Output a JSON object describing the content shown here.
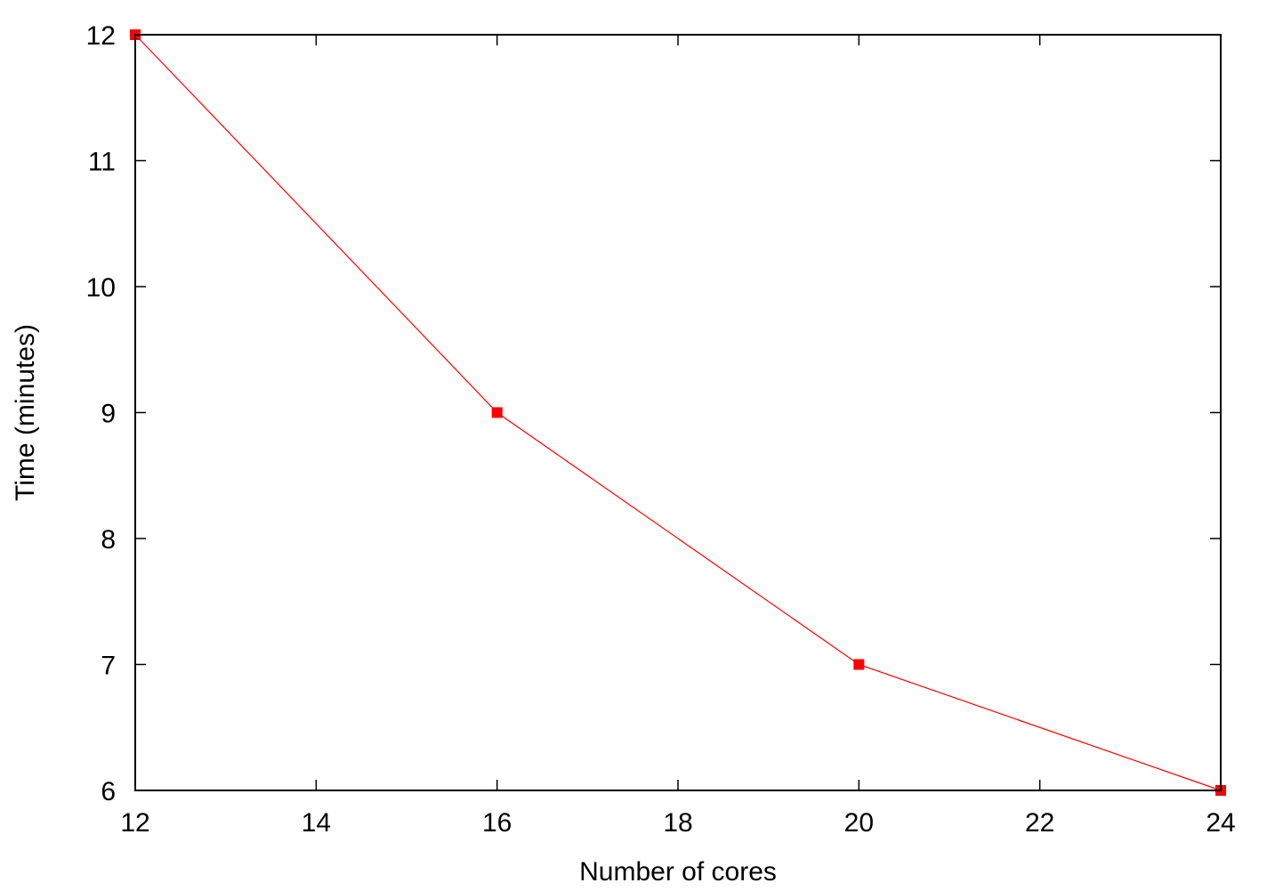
{
  "chart_data": {
    "type": "line",
    "xlabel": "Number of cores",
    "ylabel": "Time (minutes)",
    "xlim": [
      12,
      24
    ],
    "ylim": [
      6,
      12
    ],
    "xticks": [
      12,
      14,
      16,
      18,
      20,
      22,
      24
    ],
    "yticks": [
      6,
      7,
      8,
      9,
      10,
      11,
      12
    ],
    "grid": false,
    "legend": "none",
    "series": [
      {
        "color": "#ff0000",
        "marker": "square",
        "x": [
          12,
          16,
          20,
          24
        ],
        "y": [
          12,
          9,
          7,
          6
        ]
      }
    ]
  }
}
